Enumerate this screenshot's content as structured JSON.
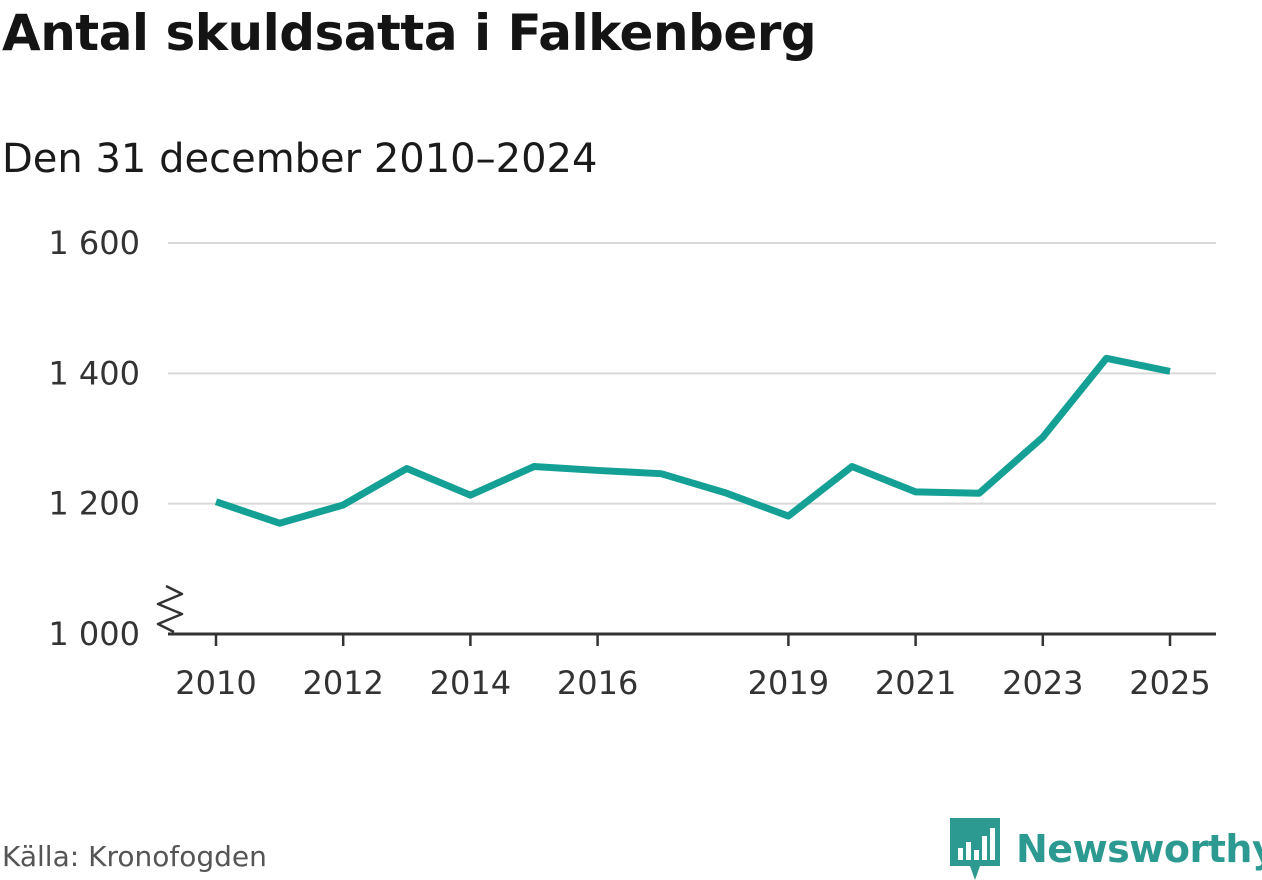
{
  "header": {
    "title": "Antal skuldsatta i Falkenberg",
    "subtitle": "Den 31 december 2010–2024"
  },
  "footer": {
    "source": "Källa: Kronofogden",
    "brand": "Newsworthy"
  },
  "colors": {
    "line": "#14a095",
    "grid": "#d9d9d9",
    "axis": "#333333",
    "brand": "#2c9a90"
  },
  "icons": {
    "brand_logo": "bar-chart-speech-bubble-icon",
    "axis_break": "zigzag-axis-break-icon"
  },
  "chart_data": {
    "type": "line",
    "title": "Antal skuldsatta i Falkenberg",
    "subtitle": "Den 31 december 2010–2024",
    "xlabel": "",
    "ylabel": "",
    "x": [
      2010,
      2011,
      2012,
      2013,
      2014,
      2015,
      2016,
      2017,
      2018,
      2019,
      2020,
      2021,
      2022,
      2023,
      2024,
      2025
    ],
    "series": [
      {
        "values": [
          1203,
          1170,
          1198,
          1254,
          1213,
          1257,
          1251,
          1246,
          1217,
          1181,
          1257,
          1218,
          1216,
          1302,
          1423,
          1403
        ]
      }
    ],
    "xticks": [
      2010,
      2012,
      2014,
      2016,
      2019,
      2021,
      2023,
      2025
    ],
    "xtick_labels": [
      "2010",
      "2012",
      "2014",
      "2016",
      "2019",
      "2021",
      "2023",
      "2025"
    ],
    "yticks": [
      1000,
      1200,
      1400,
      1600
    ],
    "ytick_labels": [
      "1 000",
      "1 200",
      "1 400",
      "1 600"
    ],
    "xlim": [
      2010,
      2025
    ],
    "ylim": [
      1000,
      1600
    ],
    "y_axis_break": true,
    "grid": true,
    "legend": "none"
  }
}
